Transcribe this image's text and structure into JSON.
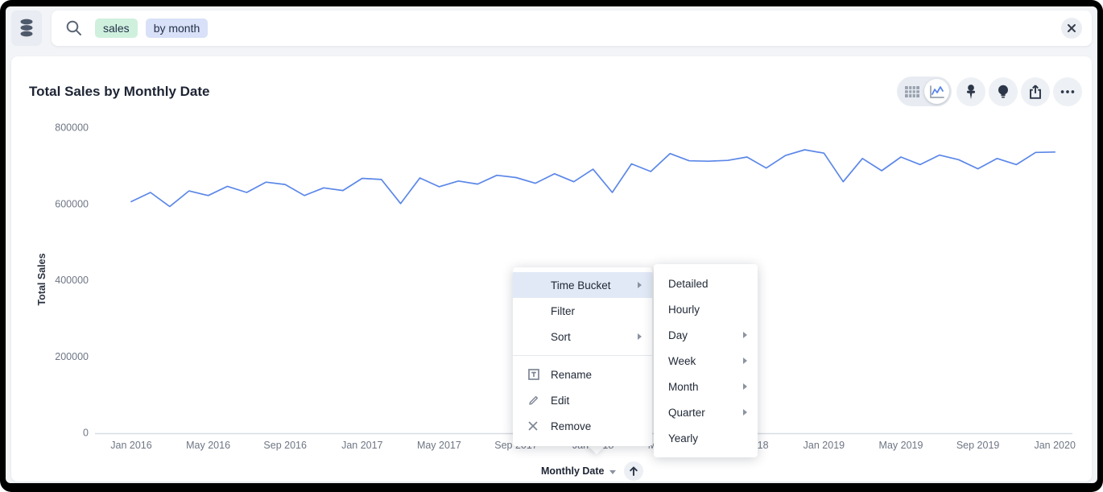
{
  "search": {
    "tokens": [
      {
        "text": "sales",
        "type": "measure"
      },
      {
        "text": "by month",
        "type": "date-bucket"
      }
    ]
  },
  "chart": {
    "title": "Total Sales by Monthly Date"
  },
  "chart_data": {
    "type": "line",
    "title": "Total Sales by Monthly Date",
    "xlabel": "Monthly Date",
    "ylabel": "Total Sales",
    "ylim": [
      0,
      800000
    ],
    "y_ticks": [
      0,
      200000,
      400000,
      600000,
      800000
    ],
    "x_tick_labels": [
      "Jan 2016",
      "May 2016",
      "Sep 2016",
      "Jan 2017",
      "May 2017",
      "Sep 2017",
      "Jan 2018",
      "May 2018",
      "Sep 2018",
      "Jan 2019",
      "May 2019",
      "Sep 2019",
      "Jan 2020"
    ],
    "x": [
      "Jan 2016",
      "Feb 2016",
      "Mar 2016",
      "Apr 2016",
      "May 2016",
      "Jun 2016",
      "Jul 2016",
      "Aug 2016",
      "Sep 2016",
      "Oct 2016",
      "Nov 2016",
      "Dec 2016",
      "Jan 2017",
      "Feb 2017",
      "Mar 2017",
      "Apr 2017",
      "May 2017",
      "Jun 2017",
      "Jul 2017",
      "Aug 2017",
      "Sep 2017",
      "Oct 2017",
      "Nov 2017",
      "Dec 2017",
      "Jan 2018",
      "Feb 2018",
      "Mar 2018",
      "Apr 2018",
      "May 2018",
      "Jun 2018",
      "Jul 2018",
      "Aug 2018",
      "Sep 2018",
      "Oct 2018",
      "Nov 2018",
      "Dec 2018",
      "Jan 2019",
      "Feb 2019",
      "Mar 2019",
      "Apr 2019",
      "May 2019",
      "Jun 2019",
      "Jul 2019",
      "Aug 2019",
      "Sep 2019",
      "Oct 2019",
      "Nov 2019",
      "Dec 2019",
      "Jan 2020"
    ],
    "values": [
      605000,
      629000,
      592000,
      633000,
      621000,
      645000,
      629000,
      656000,
      650000,
      621000,
      641000,
      634000,
      666000,
      663000,
      600000,
      667000,
      644000,
      659000,
      651000,
      674000,
      668000,
      653000,
      678000,
      657000,
      690000,
      629000,
      704000,
      684000,
      731000,
      712000,
      711000,
      713000,
      722000,
      693000,
      726000,
      741000,
      732000,
      657000,
      718000,
      686000,
      722000,
      702000,
      727000,
      715000,
      691000,
      718000,
      702000,
      734000,
      735000
    ],
    "line_color": "#5b87e8",
    "grid": false,
    "legend": "none"
  },
  "context_menu": {
    "items": [
      {
        "label": "Time Bucket",
        "has_submenu": true,
        "highlighted": true
      },
      {
        "label": "Filter",
        "has_submenu": false
      },
      {
        "label": "Sort",
        "has_submenu": true
      }
    ],
    "actions": [
      {
        "label": "Rename",
        "icon": "rename-icon"
      },
      {
        "label": "Edit",
        "icon": "edit-icon"
      },
      {
        "label": "Remove",
        "icon": "remove-icon"
      }
    ]
  },
  "submenu": {
    "items": [
      {
        "label": "Detailed",
        "has_submenu": false
      },
      {
        "label": "Hourly",
        "has_submenu": false
      },
      {
        "label": "Day",
        "has_submenu": true
      },
      {
        "label": "Week",
        "has_submenu": true
      },
      {
        "label": "Month",
        "has_submenu": true
      },
      {
        "label": "Quarter",
        "has_submenu": true
      },
      {
        "label": "Yearly",
        "has_submenu": false
      }
    ]
  },
  "x_axis_control": {
    "label": "Monthly Date"
  },
  "colors": {
    "accent_line": "#5b87e8",
    "token_measure_bg": "#cff0dd",
    "token_date_bg": "#d8e1f8",
    "menu_highlight_bg": "#e2e9f6",
    "axis_text": "#6e7684"
  }
}
